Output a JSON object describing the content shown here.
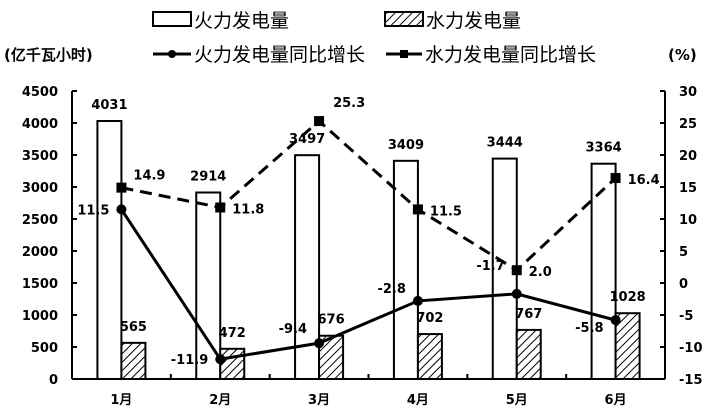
{
  "chart_data": {
    "type": "bar",
    "title": "",
    "categories": [
      "1月",
      "2月",
      "3月",
      "4月",
      "5月",
      "6月"
    ],
    "series": [
      {
        "name": "火力发电量",
        "kind": "bar",
        "axis": "left",
        "style": "white",
        "values": [
          4031,
          2914,
          3497,
          3409,
          3444,
          3364
        ]
      },
      {
        "name": "水力发电量",
        "kind": "bar",
        "axis": "left",
        "style": "hatched",
        "values": [
          565,
          472,
          676,
          702,
          767,
          1028
        ]
      },
      {
        "name": "火力发电量同比增长",
        "kind": "line",
        "axis": "right",
        "marker": "circle",
        "dash": false,
        "values": [
          11.5,
          -11.9,
          -9.4,
          -2.8,
          -1.7,
          -5.8
        ]
      },
      {
        "name": "水力发电量同比增长",
        "kind": "line",
        "axis": "right",
        "marker": "square",
        "dash": true,
        "values": [
          14.9,
          11.8,
          25.3,
          11.5,
          2.0,
          16.4
        ]
      }
    ],
    "left_axis": {
      "label": "(亿千瓦小时)",
      "min": 0,
      "max": 4500,
      "step": 500,
      "ticks": [
        "0",
        "500",
        "1000",
        "1500",
        "2000",
        "2500",
        "3000",
        "3500",
        "4000",
        "4500"
      ]
    },
    "right_axis": {
      "label": "(%)",
      "min": -15,
      "max": 30,
      "step": 5,
      "ticks": [
        "-15",
        "-10",
        "-5",
        "0",
        "5",
        "10",
        "15",
        "20",
        "25",
        "30"
      ]
    },
    "grid": false,
    "legend_position": "top"
  },
  "legend": {
    "fire_bar": "火力发电量",
    "water_bar": "水力发电量",
    "fire_line": "火力发电量同比增长",
    "water_line": "水力发电量同比增长"
  },
  "axes": {
    "left_unit": "(亿千瓦小时)",
    "right_unit": "(%)"
  }
}
